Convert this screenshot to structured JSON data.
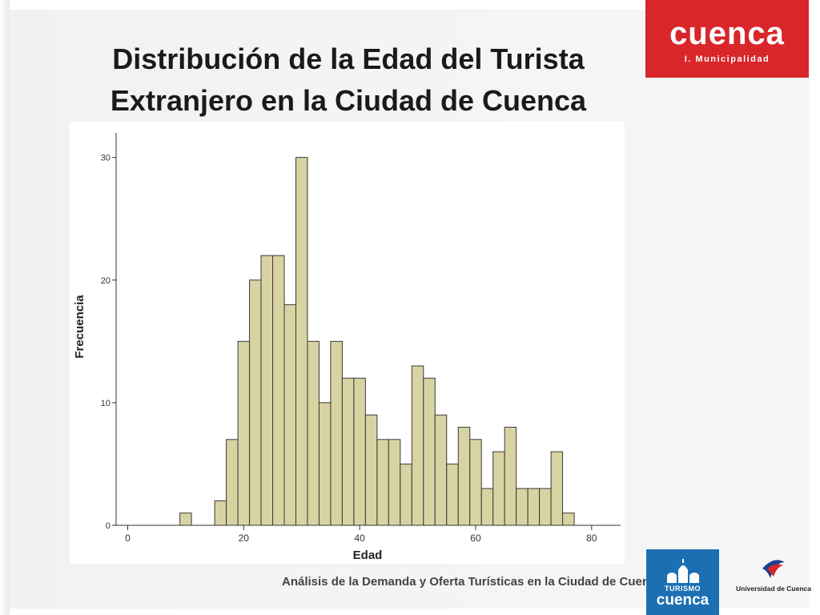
{
  "slide": {
    "title_line1": "Distribución de la Edad del Turista",
    "title_line2": "Extranjero en la Ciudad de Cuenca",
    "footer": "Análisis de la Demanda y Oferta Turísticas en la Ciudad de Cuenca"
  },
  "logos": {
    "cuenca_brand": "cuenca",
    "cuenca_sub": "I. Municipalidad",
    "turismo_line": "TURISMO",
    "turismo_brand": "cuenca",
    "university": "Universidad de Cuenca"
  },
  "colors": {
    "bar_fill": "#d8d3a2",
    "bar_stroke": "#3a3a3a",
    "cuenca_red": "#d8262b",
    "turismo_blue": "#1c6fb3"
  },
  "chart_data": {
    "type": "bar",
    "subtype": "histogram",
    "xlabel": "Edad",
    "ylabel": "Frecuencia",
    "bin_width": 2,
    "xlim": [
      -2,
      85
    ],
    "ylim": [
      0,
      32
    ],
    "x_ticks": [
      0,
      20,
      40,
      60,
      80
    ],
    "y_ticks": [
      0,
      10,
      20,
      30
    ],
    "bins": [
      {
        "start": 9,
        "count": 1
      },
      {
        "start": 15,
        "count": 2
      },
      {
        "start": 17,
        "count": 7
      },
      {
        "start": 19,
        "count": 15
      },
      {
        "start": 21,
        "count": 20
      },
      {
        "start": 23,
        "count": 22
      },
      {
        "start": 25,
        "count": 22
      },
      {
        "start": 27,
        "count": 18
      },
      {
        "start": 29,
        "count": 30
      },
      {
        "start": 31,
        "count": 15
      },
      {
        "start": 33,
        "count": 10
      },
      {
        "start": 35,
        "count": 15
      },
      {
        "start": 37,
        "count": 12
      },
      {
        "start": 39,
        "count": 12
      },
      {
        "start": 41,
        "count": 9
      },
      {
        "start": 43,
        "count": 7
      },
      {
        "start": 45,
        "count": 7
      },
      {
        "start": 47,
        "count": 5
      },
      {
        "start": 49,
        "count": 13
      },
      {
        "start": 51,
        "count": 12
      },
      {
        "start": 53,
        "count": 9
      },
      {
        "start": 55,
        "count": 5
      },
      {
        "start": 57,
        "count": 8
      },
      {
        "start": 59,
        "count": 7
      },
      {
        "start": 61,
        "count": 3
      },
      {
        "start": 63,
        "count": 6
      },
      {
        "start": 65,
        "count": 8
      },
      {
        "start": 67,
        "count": 3
      },
      {
        "start": 69,
        "count": 3
      },
      {
        "start": 71,
        "count": 3
      },
      {
        "start": 73,
        "count": 6
      },
      {
        "start": 75,
        "count": 1
      }
    ]
  }
}
